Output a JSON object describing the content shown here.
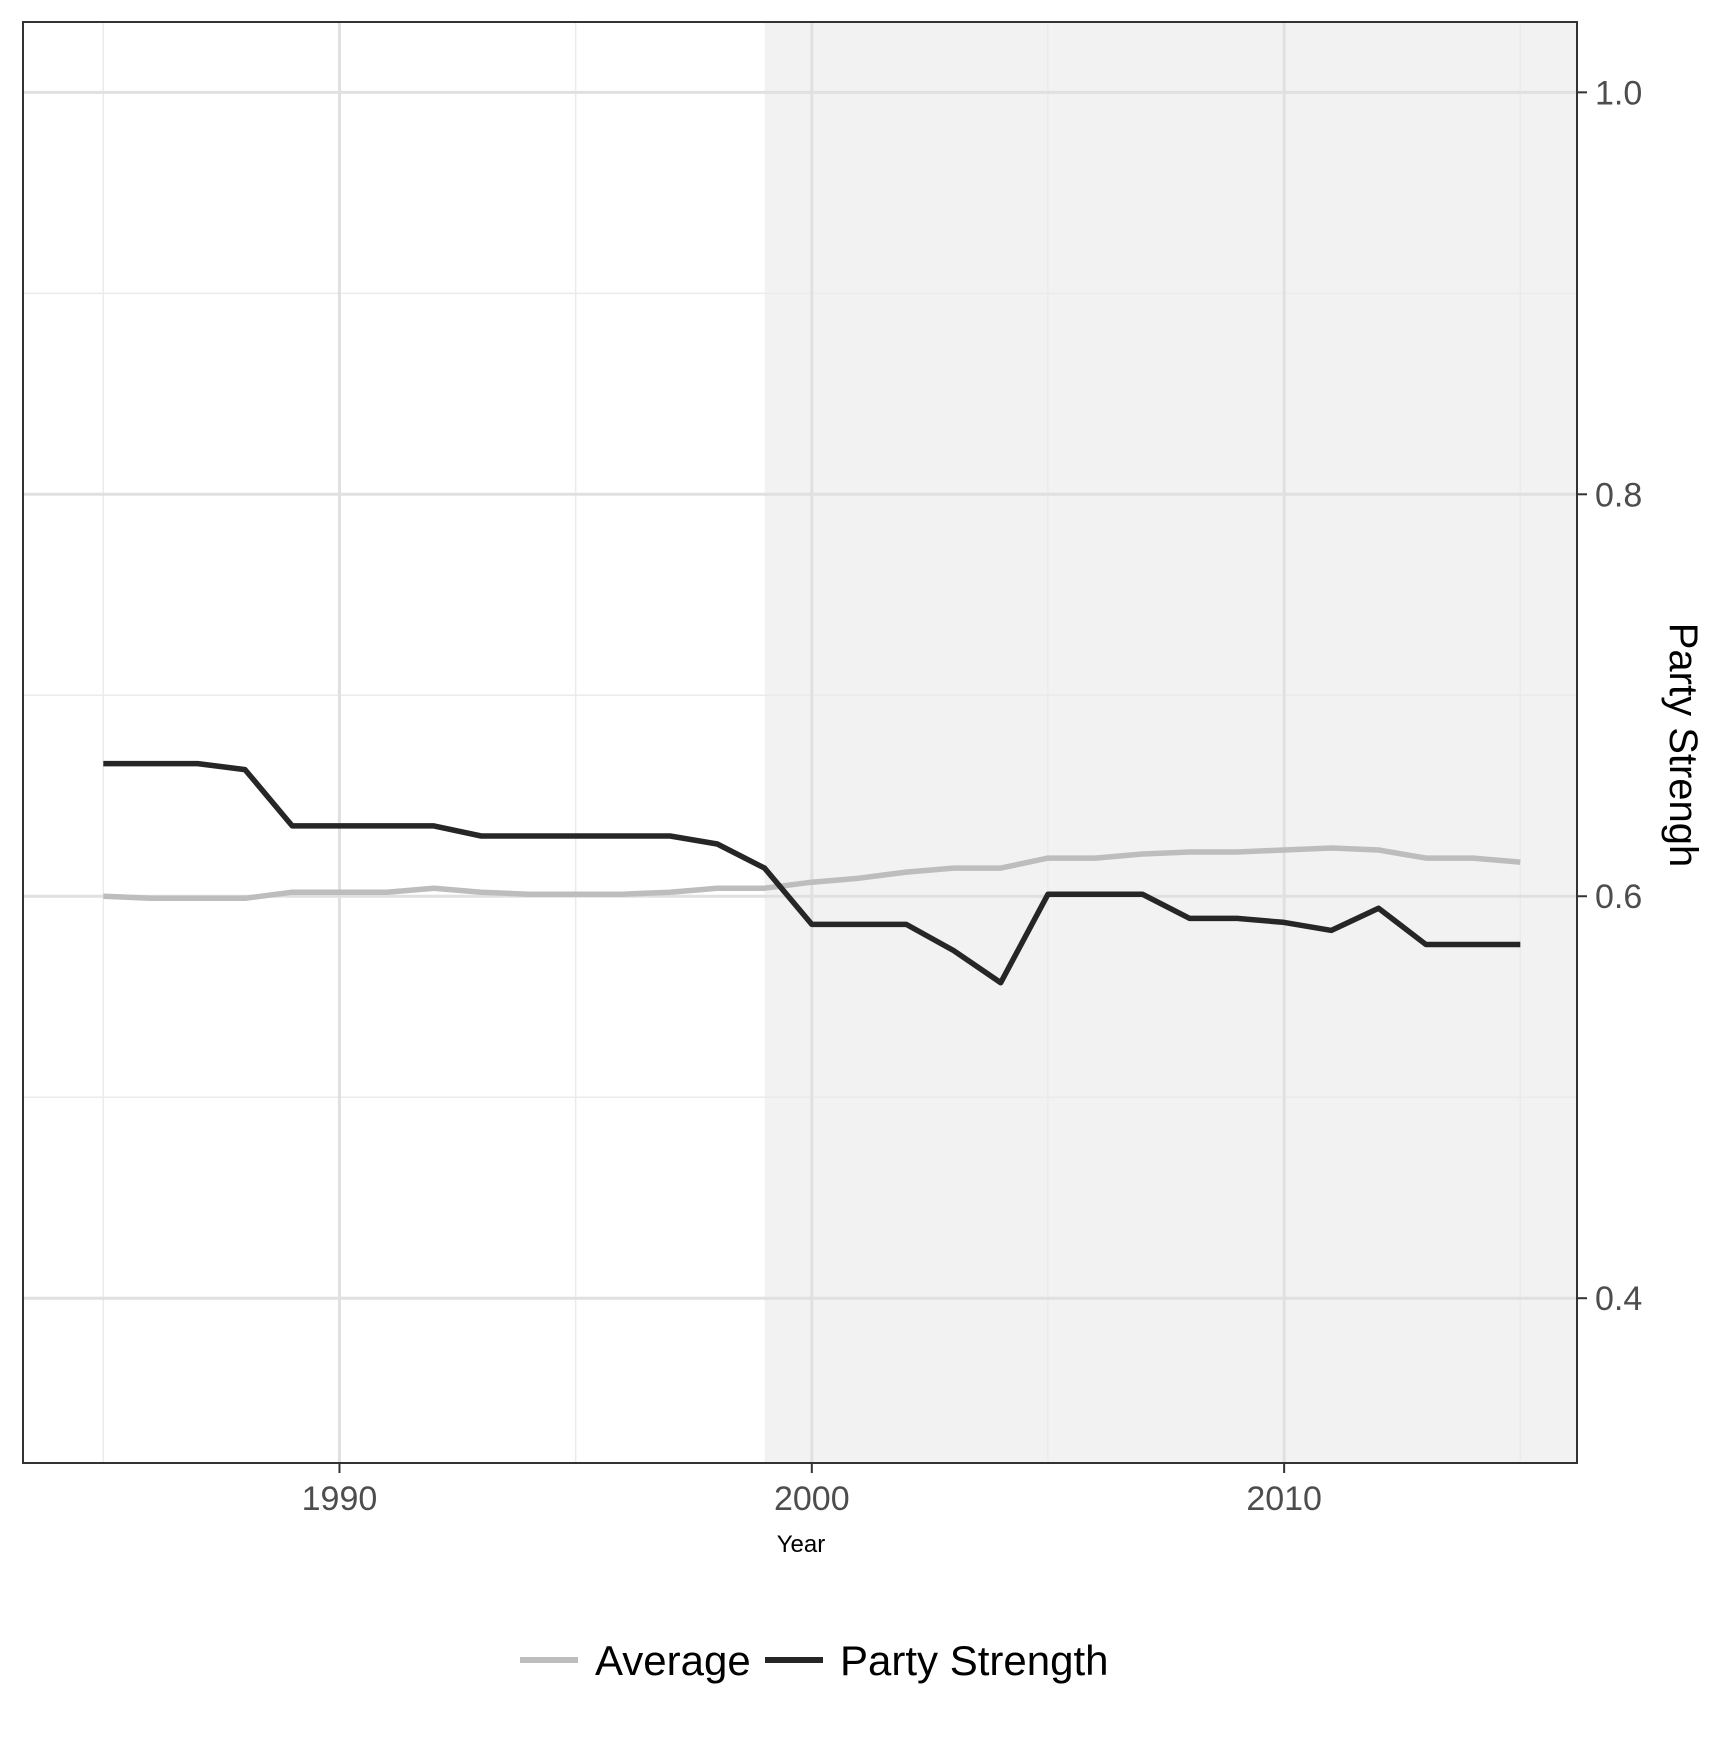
{
  "chart_data": {
    "type": "line",
    "title": "",
    "xlabel": "Year",
    "ylabel": "Party Strengh",
    "xlim": [
      1983.3,
      2016.2
    ],
    "ylim": [
      0.318,
      1.035
    ],
    "x_ticks": [
      1990,
      2000,
      2010
    ],
    "x_tick_labels": [
      "1990",
      "2000",
      "2010"
    ],
    "y_ticks": [
      0.4,
      0.6,
      0.8,
      1.0
    ],
    "y_tick_labels": [
      "0.4",
      "0.6",
      "0.8",
      "1.0"
    ],
    "y_axis_side": "right",
    "grid": true,
    "legend_position": "bottom",
    "shaded_region": {
      "x_start": 1999,
      "x_end": 2016.2,
      "color": "#f2f2f2"
    },
    "series": [
      {
        "name": "Average",
        "color": "#bdbdbd",
        "x": [
          1985,
          1986,
          1987,
          1988,
          1989,
          1990,
          1991,
          1992,
          1993,
          1994,
          1995,
          1996,
          1997,
          1998,
          1999,
          2000,
          2001,
          2002,
          2003,
          2004,
          2005,
          2006,
          2007,
          2008,
          2009,
          2010,
          2011,
          2012,
          2013,
          2014,
          2015
        ],
        "y": [
          0.6,
          0.599,
          0.599,
          0.599,
          0.602,
          0.602,
          0.602,
          0.604,
          0.602,
          0.601,
          0.601,
          0.601,
          0.602,
          0.604,
          0.604,
          0.607,
          0.609,
          0.612,
          0.614,
          0.614,
          0.619,
          0.619,
          0.621,
          0.622,
          0.622,
          0.623,
          0.624,
          0.623,
          0.619,
          0.619,
          0.617
        ]
      },
      {
        "name": "Party Strength",
        "color": "#262626",
        "x": [
          1985,
          1986,
          1987,
          1988,
          1989,
          1990,
          1991,
          1992,
          1993,
          1994,
          1995,
          1996,
          1997,
          1998,
          1999,
          2000,
          2001,
          2002,
          2003,
          2004,
          2005,
          2006,
          2007,
          2008,
          2009,
          2010,
          2011,
          2012,
          2013,
          2014,
          2015
        ],
        "y": [
          0.666,
          0.666,
          0.666,
          0.663,
          0.635,
          0.635,
          0.635,
          0.635,
          0.63,
          0.63,
          0.63,
          0.63,
          0.63,
          0.626,
          0.614,
          0.586,
          0.586,
          0.586,
          0.573,
          0.557,
          0.601,
          0.601,
          0.601,
          0.589,
          0.589,
          0.587,
          0.583,
          0.594,
          0.576,
          0.576,
          0.576
        ]
      }
    ]
  }
}
